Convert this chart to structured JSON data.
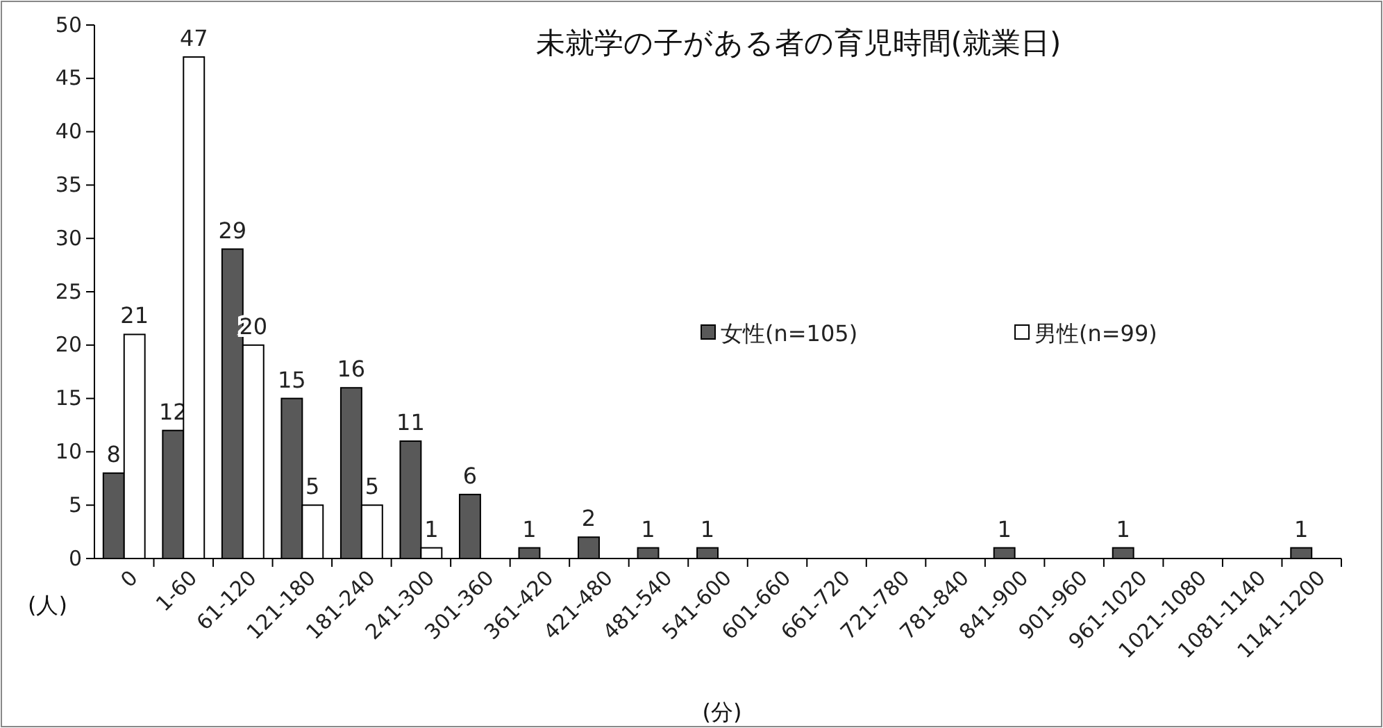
{
  "chart_data": {
    "type": "bar",
    "title": "未就学の子がある者の育児時間(就業日)",
    "xlabel": "(分)",
    "ylabel": "(人)",
    "categories": [
      "0",
      "1-60",
      "61-120",
      "121-180",
      "181-240",
      "241-300",
      "301-360",
      "361-420",
      "421-480",
      "481-540",
      "541-600",
      "601-660",
      "661-720",
      "721-780",
      "781-840",
      "841-900",
      "901-960",
      "961-1020",
      "1021-1080",
      "1081-1140",
      "1141-1200"
    ],
    "series": [
      {
        "name": "女性(n=105)",
        "color": "#595959",
        "values": [
          8,
          12,
          29,
          15,
          16,
          11,
          6,
          1,
          2,
          1,
          1,
          0,
          0,
          0,
          0,
          1,
          0,
          1,
          0,
          0,
          1
        ],
        "value_labels": [
          "8",
          "12",
          "29",
          "15",
          "16",
          "11",
          "6",
          "1",
          "2",
          "1",
          "1",
          null,
          null,
          null,
          null,
          "1",
          null,
          "1",
          null,
          null,
          "1"
        ]
      },
      {
        "name": "男性(n=99)",
        "color": "#ffffff",
        "values": [
          21,
          47,
          20,
          5,
          5,
          1,
          0,
          0,
          0,
          0,
          0,
          0,
          0,
          0,
          0,
          0,
          0,
          0,
          0,
          0,
          0
        ],
        "value_labels": [
          "21",
          "47",
          "20",
          "5",
          "5",
          "1",
          null,
          null,
          null,
          null,
          null,
          null,
          null,
          null,
          null,
          null,
          null,
          null,
          null,
          null,
          null
        ]
      }
    ],
    "ylim": [
      0,
      50
    ],
    "yticks": [
      0,
      5,
      10,
      15,
      20,
      25,
      30,
      35,
      40,
      45,
      50
    ],
    "grid": false,
    "legend": "right"
  }
}
